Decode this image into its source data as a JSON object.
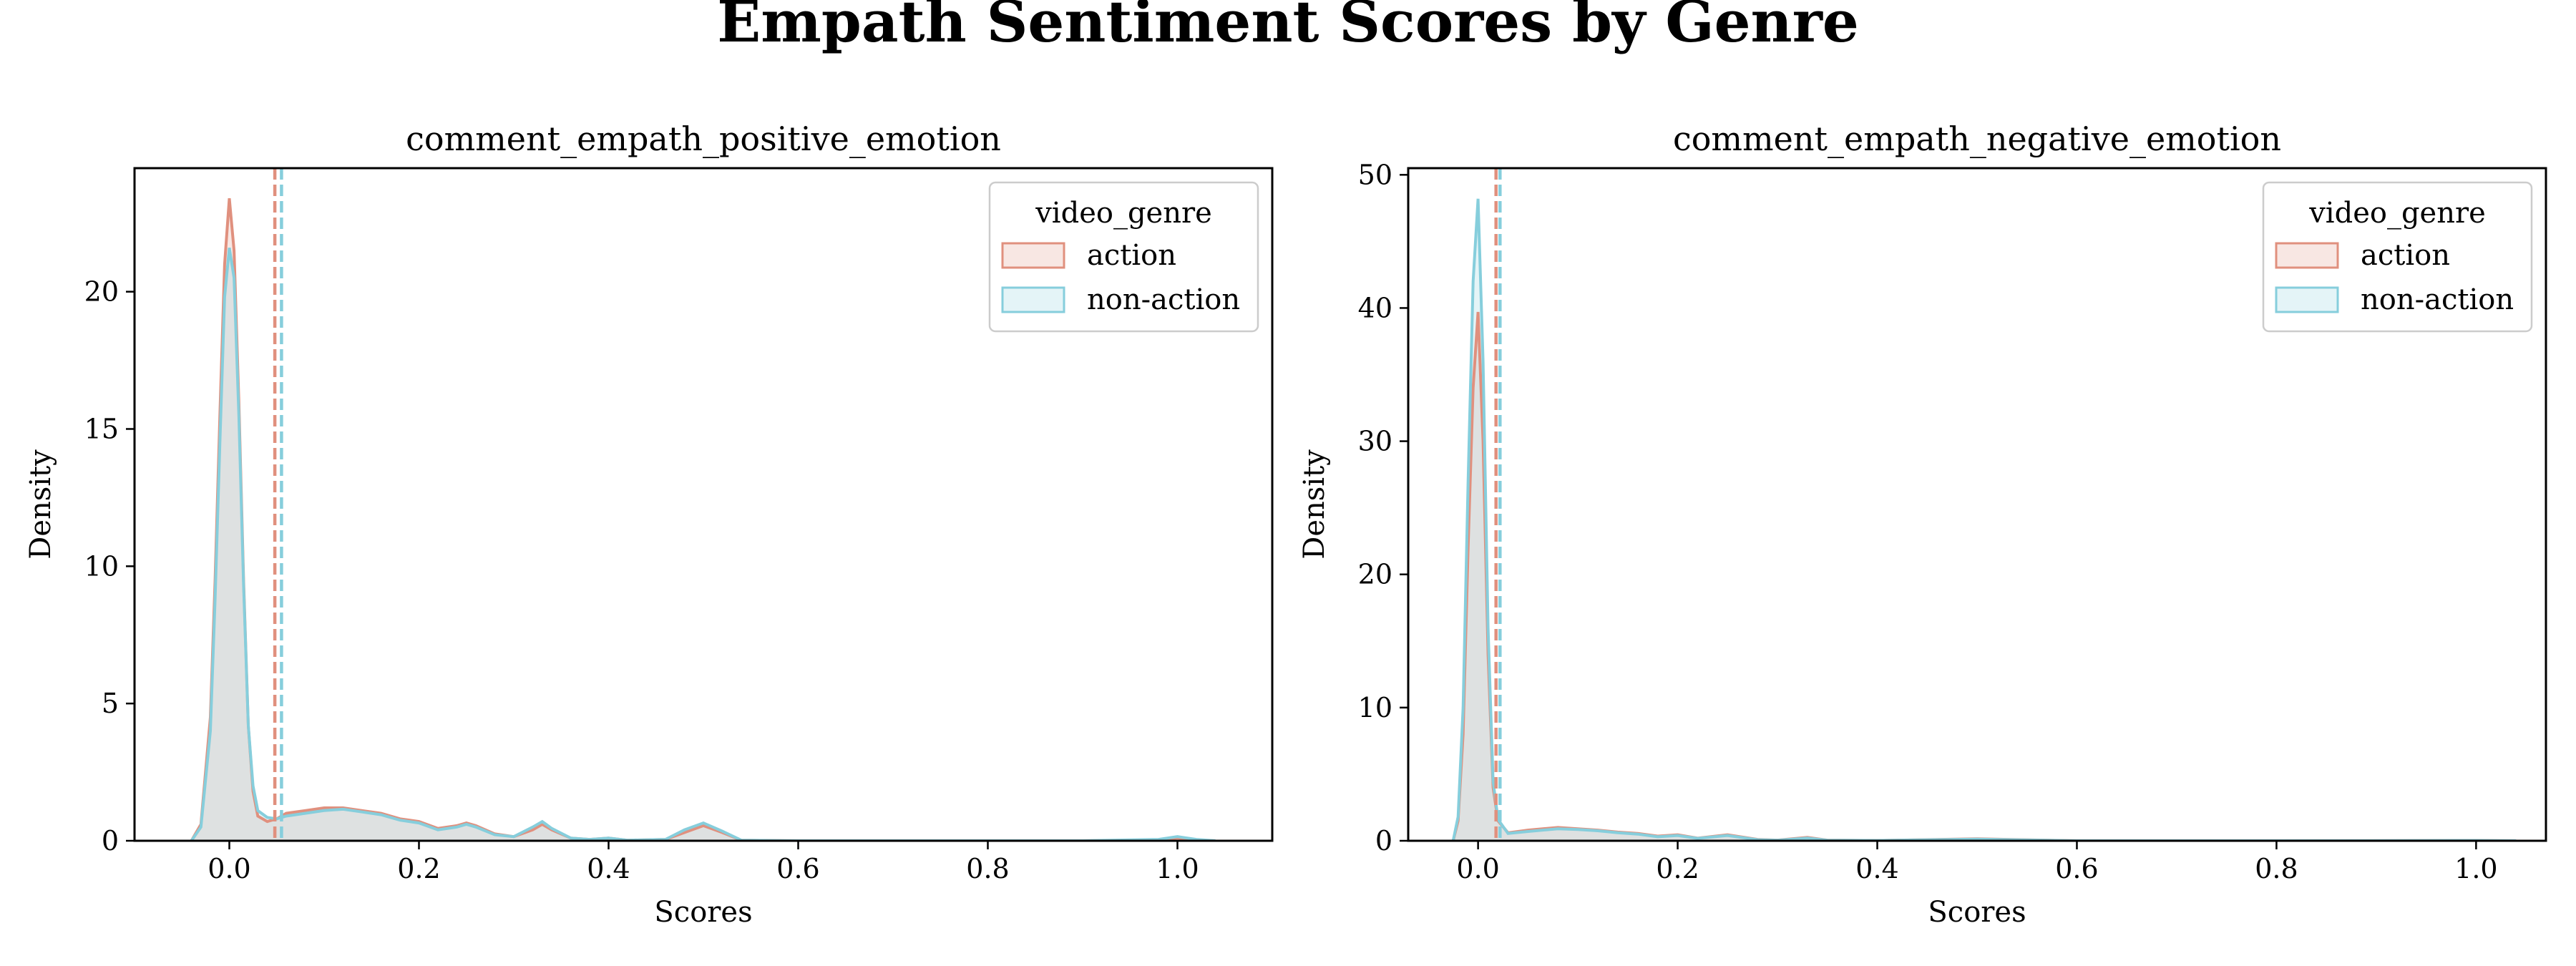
{
  "figure": {
    "suptitle": "Empath Sentiment Scores by Genre"
  },
  "colors": {
    "action": "#E0907E",
    "non_action": "#86CEDC",
    "overlap_fill": "#DEE2E2",
    "axes": "#000000"
  },
  "chart_data": [
    {
      "type": "area",
      "title": "comment_empath_positive_emotion",
      "xlabel": "Scores",
      "ylabel": "Density",
      "xlim": [
        -0.1,
        1.1
      ],
      "ylim": [
        0,
        24.5
      ],
      "xticks": [
        0.0,
        0.2,
        0.4,
        0.6,
        0.8,
        1.0
      ],
      "xtick_labels": [
        "0.0",
        "0.2",
        "0.4",
        "0.6",
        "0.8",
        "1.0"
      ],
      "yticks": [
        0,
        5,
        10,
        15,
        20
      ],
      "ytick_labels": [
        "0",
        "5",
        "10",
        "15",
        "20"
      ],
      "legend": {
        "title": "video_genre",
        "entries": [
          "action",
          "non-action"
        ],
        "position": "upper right"
      },
      "series": [
        {
          "name": "action",
          "x": [
            -0.04,
            -0.03,
            -0.02,
            -0.015,
            -0.01,
            -0.005,
            0.0,
            0.005,
            0.01,
            0.015,
            0.02,
            0.025,
            0.03,
            0.04,
            0.05,
            0.06,
            0.08,
            0.1,
            0.12,
            0.14,
            0.16,
            0.18,
            0.2,
            0.22,
            0.24,
            0.25,
            0.26,
            0.28,
            0.3,
            0.32,
            0.33,
            0.34,
            0.36,
            0.38,
            0.4,
            0.42,
            0.46,
            0.48,
            0.5,
            0.52,
            0.54,
            0.6,
            0.7,
            0.8,
            0.9,
            0.98,
            1.0,
            1.02,
            1.04
          ],
          "y": [
            0,
            0.6,
            4.5,
            9.5,
            15.5,
            21.0,
            23.4,
            21.5,
            16.0,
            9.5,
            4.2,
            1.8,
            0.9,
            0.7,
            0.8,
            1.0,
            1.1,
            1.2,
            1.2,
            1.1,
            1.0,
            0.8,
            0.7,
            0.45,
            0.55,
            0.65,
            0.55,
            0.25,
            0.15,
            0.4,
            0.6,
            0.4,
            0.1,
            0.05,
            0.1,
            0.02,
            0.05,
            0.3,
            0.55,
            0.3,
            0.02,
            0.0,
            0.0,
            0.0,
            0.0,
            0.02,
            0.1,
            0.02,
            0
          ],
          "mean": 0.048
        },
        {
          "name": "non-action",
          "x": [
            -0.04,
            -0.03,
            -0.02,
            -0.015,
            -0.01,
            -0.005,
            0.0,
            0.005,
            0.01,
            0.015,
            0.02,
            0.025,
            0.03,
            0.04,
            0.05,
            0.06,
            0.08,
            0.1,
            0.12,
            0.14,
            0.16,
            0.18,
            0.2,
            0.22,
            0.24,
            0.25,
            0.26,
            0.28,
            0.3,
            0.32,
            0.33,
            0.34,
            0.36,
            0.38,
            0.4,
            0.42,
            0.46,
            0.48,
            0.5,
            0.52,
            0.54,
            0.6,
            0.7,
            0.8,
            0.9,
            0.98,
            1.0,
            1.02,
            1.04
          ],
          "y": [
            0,
            0.5,
            4.0,
            8.8,
            14.5,
            19.8,
            21.6,
            20.5,
            15.5,
            9.3,
            4.2,
            2.0,
            1.1,
            0.85,
            0.8,
            0.9,
            1.0,
            1.1,
            1.15,
            1.05,
            0.95,
            0.75,
            0.65,
            0.4,
            0.5,
            0.6,
            0.5,
            0.22,
            0.15,
            0.5,
            0.7,
            0.45,
            0.1,
            0.05,
            0.1,
            0.02,
            0.05,
            0.4,
            0.65,
            0.35,
            0.02,
            0.0,
            0.0,
            0.0,
            0.0,
            0.05,
            0.15,
            0.05,
            0
          ],
          "mean": 0.055
        }
      ]
    },
    {
      "type": "area",
      "title": "comment_empath_negative_emotion",
      "xlabel": "Scores",
      "ylabel": "Density",
      "xlim": [
        -0.07,
        1.07
      ],
      "ylim": [
        0,
        50.5
      ],
      "xticks": [
        0.0,
        0.2,
        0.4,
        0.6,
        0.8,
        1.0
      ],
      "xtick_labels": [
        "0.0",
        "0.2",
        "0.4",
        "0.6",
        "0.8",
        "1.0"
      ],
      "yticks": [
        0,
        10,
        20,
        30,
        40,
        50
      ],
      "ytick_labels": [
        "0",
        "10",
        "20",
        "30",
        "40",
        "50"
      ],
      "legend": {
        "title": "video_genre",
        "entries": [
          "action",
          "non-action"
        ],
        "position": "upper right"
      },
      "series": [
        {
          "name": "action",
          "x": [
            -0.025,
            -0.02,
            -0.015,
            -0.01,
            -0.005,
            0.0,
            0.005,
            0.01,
            0.015,
            0.02,
            0.03,
            0.05,
            0.08,
            0.1,
            0.12,
            0.14,
            0.16,
            0.18,
            0.2,
            0.22,
            0.25,
            0.28,
            0.3,
            0.33,
            0.35,
            0.4,
            0.5,
            0.6,
            0.8,
            1.0,
            1.04
          ],
          "y": [
            0,
            1.5,
            8,
            22,
            34,
            39.7,
            30,
            14,
            4,
            1.5,
            0.6,
            0.8,
            1.0,
            0.9,
            0.8,
            0.65,
            0.55,
            0.35,
            0.45,
            0.2,
            0.45,
            0.1,
            0.05,
            0.25,
            0.05,
            0.02,
            0.15,
            0.0,
            0.0,
            0.02,
            0
          ],
          "mean": 0.018
        },
        {
          "name": "non-action",
          "x": [
            -0.025,
            -0.02,
            -0.015,
            -0.01,
            -0.005,
            0.0,
            0.005,
            0.01,
            0.015,
            0.02,
            0.03,
            0.05,
            0.08,
            0.1,
            0.12,
            0.14,
            0.16,
            0.18,
            0.2,
            0.22,
            0.25,
            0.28,
            0.3,
            0.33,
            0.35,
            0.4,
            0.5,
            0.6,
            0.8,
            1.0,
            1.04
          ],
          "y": [
            0,
            1.8,
            10,
            27,
            42,
            48.2,
            36,
            16,
            4.5,
            1.6,
            0.55,
            0.7,
            0.9,
            0.85,
            0.75,
            0.6,
            0.5,
            0.3,
            0.4,
            0.18,
            0.4,
            0.08,
            0.04,
            0.2,
            0.04,
            0.02,
            0.12,
            0.0,
            0.0,
            0.02,
            0
          ],
          "mean": 0.022
        }
      ]
    }
  ]
}
